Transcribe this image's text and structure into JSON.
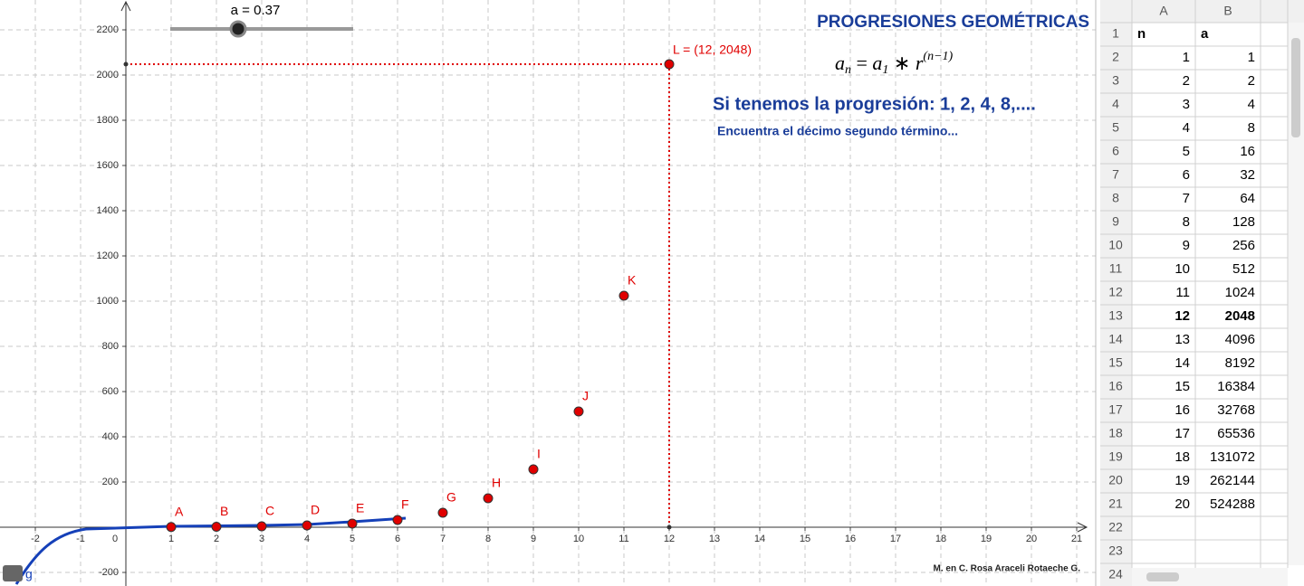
{
  "slider": {
    "label": "a = 0.37"
  },
  "title": "PROGRESIONES GEOMÉTRICAS",
  "formula": [
    "a",
    "n",
    " = ",
    "a",
    "1",
    " ∗ ",
    "r",
    "(n−1)"
  ],
  "statement": "Si tenemos la progresión: 1, 2, 4, 8,....",
  "question": "Encuentra el décimo segundo término...",
  "author": "M. en C. Rosa Araceli Rotaeche G.",
  "graph": {
    "type": "scatter",
    "xlim": [
      -2.78,
      21.42
    ],
    "ylim": [
      -260,
      2332
    ],
    "xticks": [
      -2,
      -1,
      0,
      1,
      2,
      3,
      4,
      5,
      6,
      7,
      8,
      9,
      10,
      11,
      12,
      13,
      14,
      15,
      16,
      17,
      18,
      19,
      20,
      21
    ],
    "yticks": [
      -200,
      200,
      400,
      600,
      800,
      1000,
      1200,
      1400,
      1600,
      1800,
      2000,
      2200
    ],
    "grid": true,
    "color": "#e00000",
    "points": [
      {
        "name": "A",
        "x": 1,
        "y": 1
      },
      {
        "name": "B",
        "x": 2,
        "y": 2
      },
      {
        "name": "C",
        "x": 3,
        "y": 4
      },
      {
        "name": "D",
        "x": 4,
        "y": 8
      },
      {
        "name": "E",
        "x": 5,
        "y": 16
      },
      {
        "name": "F",
        "x": 6,
        "y": 32
      },
      {
        "name": "G",
        "x": 7,
        "y": 64
      },
      {
        "name": "H",
        "x": 8,
        "y": 128
      },
      {
        "name": "I",
        "x": 9,
        "y": 256
      },
      {
        "name": "J",
        "x": 10,
        "y": 512
      },
      {
        "name": "K",
        "x": 11,
        "y": 1024
      }
    ],
    "highlight": {
      "label": "L = (12, 2048)",
      "x": 12,
      "y": 2048
    },
    "curve_label": "g"
  },
  "spreadsheet": {
    "columns": [
      "A",
      "B"
    ],
    "row_numbers": [
      1,
      2,
      3,
      4,
      5,
      6,
      7,
      8,
      9,
      10,
      11,
      12,
      13,
      14,
      15,
      16,
      17,
      18,
      19,
      20,
      21,
      22,
      23,
      24
    ],
    "rows": [
      [
        "n",
        "a"
      ],
      [
        1,
        1
      ],
      [
        2,
        2
      ],
      [
        3,
        4
      ],
      [
        4,
        8
      ],
      [
        5,
        16
      ],
      [
        6,
        32
      ],
      [
        7,
        64
      ],
      [
        8,
        128
      ],
      [
        9,
        256
      ],
      [
        10,
        512
      ],
      [
        11,
        1024
      ],
      [
        12,
        2048
      ],
      [
        13,
        4096
      ],
      [
        14,
        8192
      ],
      [
        15,
        16384
      ],
      [
        16,
        32768
      ],
      [
        17,
        65536
      ],
      [
        18,
        131072
      ],
      [
        19,
        262144
      ],
      [
        20,
        524288
      ]
    ],
    "bold_row": 12
  }
}
